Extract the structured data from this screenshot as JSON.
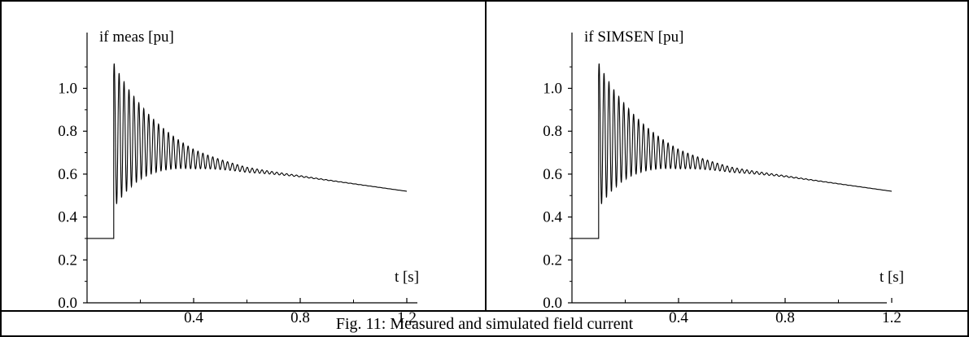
{
  "caption": "Fig. 11: Measured and simulated field current",
  "chart_data": [
    {
      "type": "line",
      "title": "",
      "ylabel": "if meas [pu]",
      "xlabel": "t [s]",
      "xlim": [
        0,
        1.28
      ],
      "ylim": [
        0,
        1.13
      ],
      "xticks": [
        0.4,
        0.8,
        1.2
      ],
      "xtick_labels": [
        "0.4",
        "0.8",
        "1.2"
      ],
      "xticks_minor": [
        0.2,
        0.6,
        1.0
      ],
      "yticks": [
        0.0,
        0.2,
        0.4,
        0.6,
        0.8,
        1.0
      ],
      "ytick_labels": [
        "0.0",
        "0.2",
        "0.4",
        "0.6",
        "0.8",
        "1.0"
      ],
      "grid": false,
      "series": [
        {
          "description": "Field current response to a step at t=0.1 s; initial value 0.30 pu, damped oscillation settling onto a slow exponential decay ending near 0.52 pu at 1.2 s",
          "pre_step_value": 0.3,
          "step_time": 0.1,
          "first_peak": 1.07,
          "first_trough": 0.39,
          "decay_points_t": [
            0.1,
            0.2,
            0.4,
            0.6,
            0.8,
            1.0,
            1.2
          ],
          "decay_points_y": [
            0.78,
            0.75,
            0.67,
            0.62,
            0.59,
            0.555,
            0.52
          ],
          "oscillation_period_s": 0.0185
        }
      ]
    },
    {
      "type": "line",
      "title": "",
      "ylabel": "if SIMSEN [pu]",
      "xlabel": "t [s]",
      "xlim": [
        0,
        1.28
      ],
      "ylim": [
        0,
        1.13
      ],
      "xticks": [
        0.4,
        0.8,
        1.2
      ],
      "xtick_labels": [
        "0.4",
        "0.8",
        "1.2"
      ],
      "xticks_minor": [
        0.2,
        0.6,
        1.0
      ],
      "yticks": [
        0.0,
        0.2,
        0.4,
        0.6,
        0.8,
        1.0
      ],
      "ytick_labels": [
        "0.0",
        "0.2",
        "0.4",
        "0.6",
        "0.8",
        "1.0"
      ],
      "grid": false,
      "series": [
        {
          "description": "Simulated field current; same step response shape as the measurement",
          "pre_step_value": 0.3,
          "step_time": 0.1,
          "first_peak": 1.07,
          "first_trough": 0.39,
          "decay_points_t": [
            0.1,
            0.2,
            0.4,
            0.6,
            0.8,
            1.0,
            1.2
          ],
          "decay_points_y": [
            0.78,
            0.75,
            0.67,
            0.62,
            0.59,
            0.555,
            0.52
          ],
          "oscillation_period_s": 0.0185
        }
      ]
    }
  ]
}
